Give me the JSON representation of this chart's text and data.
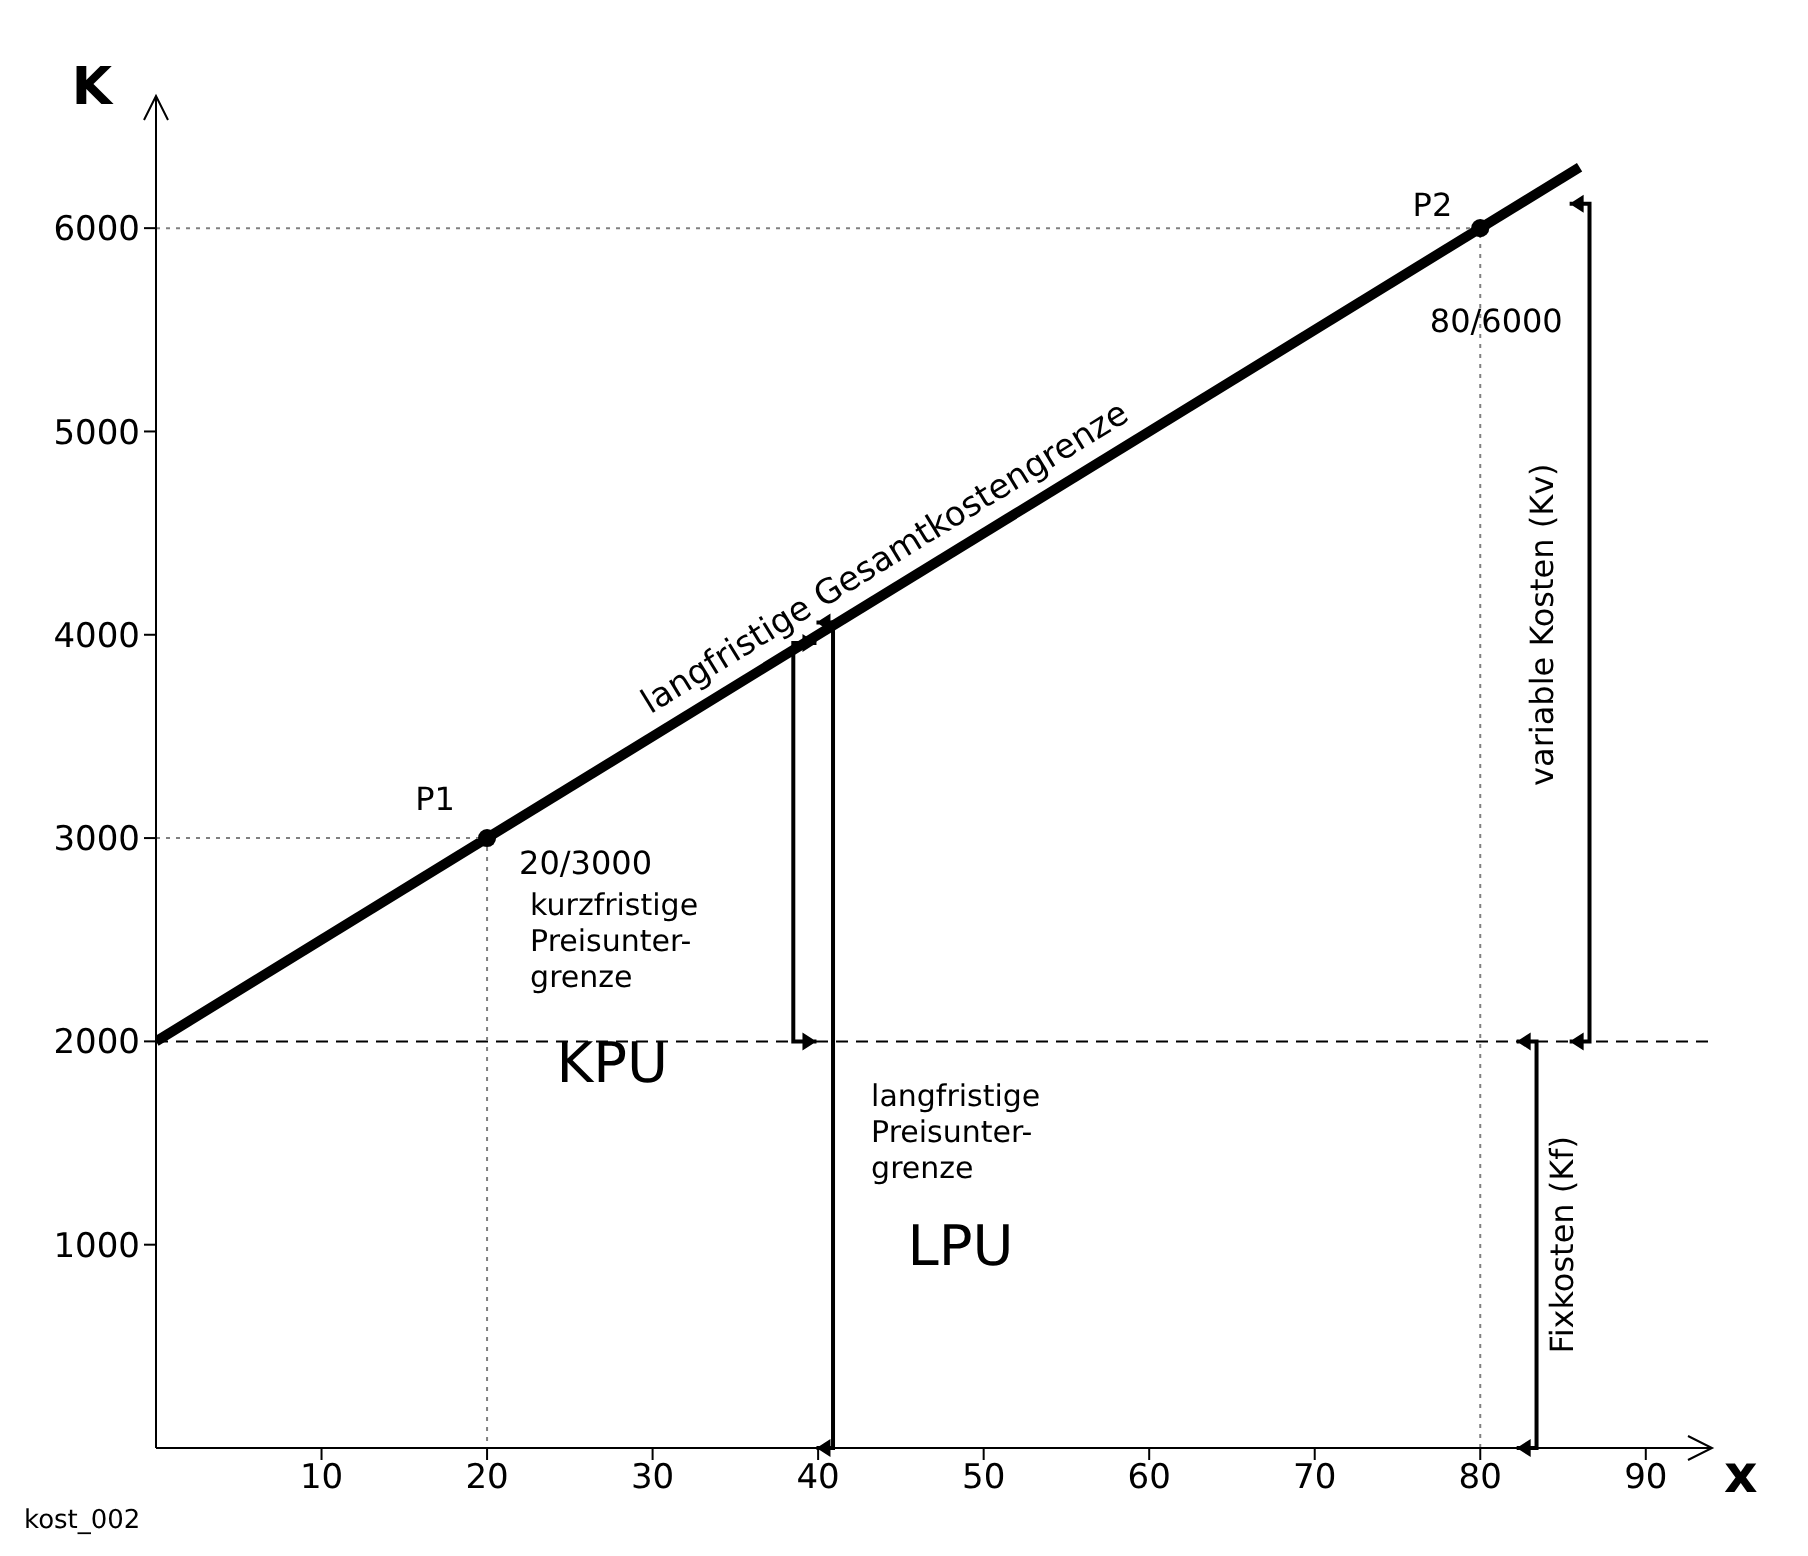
{
  "chart_data": {
    "type": "line",
    "xlabel": "x",
    "ylabel": "K",
    "xlim": [
      0,
      94
    ],
    "ylim": [
      0,
      6650
    ],
    "xticks": [
      10,
      20,
      30,
      40,
      50,
      60,
      70,
      80,
      90
    ],
    "yticks": [
      1000,
      2000,
      3000,
      4000,
      5000,
      6000
    ],
    "series": [
      {
        "color": "#000000",
        "x": [
          0,
          86
        ],
        "values": [
          2000,
          6300
        ],
        "marker": "none",
        "line_style": "solid"
      },
      {
        "type": "scatter",
        "color": "#000000",
        "x": [
          20,
          80
        ],
        "values": [
          3000,
          6000
        ],
        "marker": "circle"
      },
      {
        "type": "line",
        "color": "#808080",
        "x": [
          0,
          20,
          20
        ],
        "values": [
          3000,
          3000,
          0
        ],
        "marker": "none",
        "line_style": "dotted"
      },
      {
        "type": "line",
        "color": "#808080",
        "x": [
          0,
          80,
          80
        ],
        "values": [
          6000,
          6000,
          0
        ],
        "marker": "none",
        "line_style": "dotted"
      }
    ],
    "ref_lines": [
      {
        "axis": "y",
        "value": 2000,
        "color": "#000000",
        "line_style": "dashed"
      }
    ],
    "annotations": [
      {
        "text": "P1",
        "x": 20,
        "y": 3000
      },
      {
        "text": "20/3000",
        "x": 20,
        "y": 3000
      },
      {
        "text": "P2",
        "x": 80,
        "y": 6000
      },
      {
        "text": "80/6000",
        "x": 80,
        "y": 6000
      },
      {
        "text": "langfristige Gesamtkostengrenze",
        "x": 45,
        "y": 4250
      },
      "kurzfristige\nPreisunter-\ngrenze",
      "KPU",
      "langfristige\nPreisunter-\ngrenze",
      "LPU",
      "variable Kosten (Kv)",
      "Fixkosten (Kf)",
      "kost_002"
    ]
  }
}
